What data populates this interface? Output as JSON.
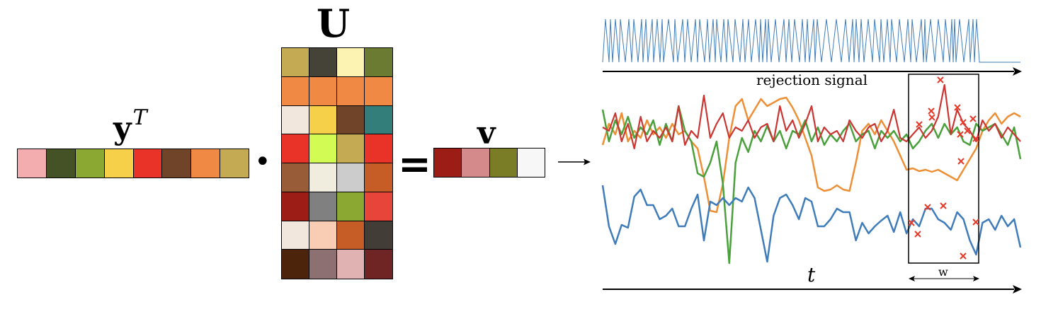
{
  "equation": {
    "y_symbol": "y",
    "y_superscript": "T",
    "dot_operator": "•",
    "u_symbol": "U",
    "equals": "=",
    "v_symbol": "v",
    "arrow": "→",
    "y_colors": [
      "#f4adae",
      "#445225",
      "#8ba832",
      "#f7d04a",
      "#e93328",
      "#704428",
      "#f08944",
      "#c4aa52"
    ],
    "u_rows": [
      [
        "#c4aa52",
        "#454237",
        "#fcf2b2",
        "#6b7b31"
      ],
      [
        "#f08944",
        "#f08944",
        "#f08944",
        "#f08944"
      ],
      [
        "#f1e7dc",
        "#f7d04a",
        "#704428",
        "#337d7a"
      ],
      [
        "#e93328",
        "#d2fb54",
        "#c4aa52",
        "#e93328"
      ],
      [
        "#985c38",
        "#f1edde",
        "#cccccc",
        "#c65d27"
      ],
      [
        "#9b1d15",
        "#808080",
        "#8ba832",
        "#e74539"
      ],
      [
        "#f1e7dc",
        "#f8cdb4",
        "#c65d27",
        "#433d37"
      ],
      [
        "#4c230b",
        "#8d7071",
        "#e1b2b2",
        "#702525"
      ]
    ],
    "v_colors": [
      "#9b1d15",
      "#d48a8a",
      "#7a7d26",
      "#f7f7f7"
    ]
  },
  "signals": {
    "rejection_label": "rejection signal",
    "time_label": "t",
    "window_label": "w",
    "colors": {
      "rejection": "#3f7cba",
      "blue": "#3f7cba",
      "orange": "#ee8f36",
      "green": "#4aa13c",
      "red": "#cb3532",
      "marker": "#e53a2a"
    }
  }
}
